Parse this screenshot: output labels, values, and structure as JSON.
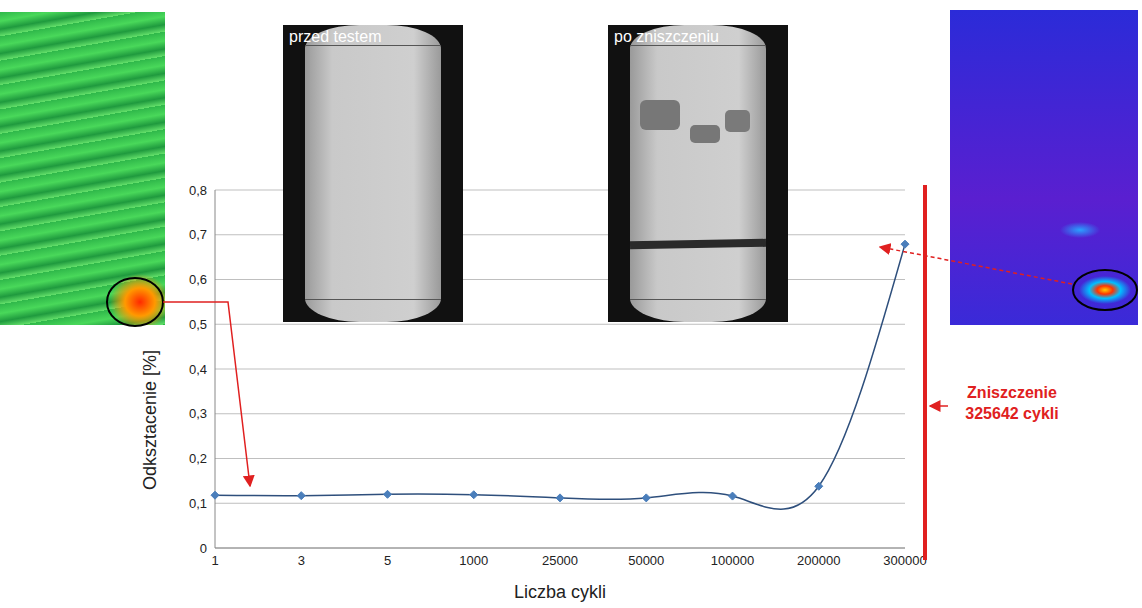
{
  "chart_data": {
    "type": "line",
    "categories": [
      "1",
      "3",
      "5",
      "1000",
      "25000",
      "50000",
      "100000",
      "200000",
      "300000"
    ],
    "values": [
      0.118,
      0.117,
      0.12,
      0.119,
      0.112,
      0.112,
      0.116,
      0.138,
      0.679
    ],
    "color": "#2e4f7c",
    "marker": "diamond",
    "line_style": "smooth",
    "ylim": [
      0,
      0.8
    ],
    "yticks": [
      0,
      {
        "value": 0.1,
        "label": "0,1"
      },
      {
        "value": 0.2,
        "label": "0,2"
      },
      {
        "value": 0.3,
        "label": "0,3"
      },
      {
        "value": 0.4,
        "label": "0,4"
      },
      {
        "value": 0.5,
        "label": "0,5"
      },
      {
        "value": 0.6,
        "label": "0,6"
      },
      {
        "value": 0.7,
        "label": "0,7"
      },
      {
        "value": 0.8,
        "label": "0,8"
      }
    ],
    "grid": true,
    "y_label": "Odksztacenie [%]",
    "x_label": "Liczba cykli",
    "annotations": [
      "przed testem",
      "po zniszczeniu",
      "Zniszczenie 325642 cykli"
    ]
  }
}
